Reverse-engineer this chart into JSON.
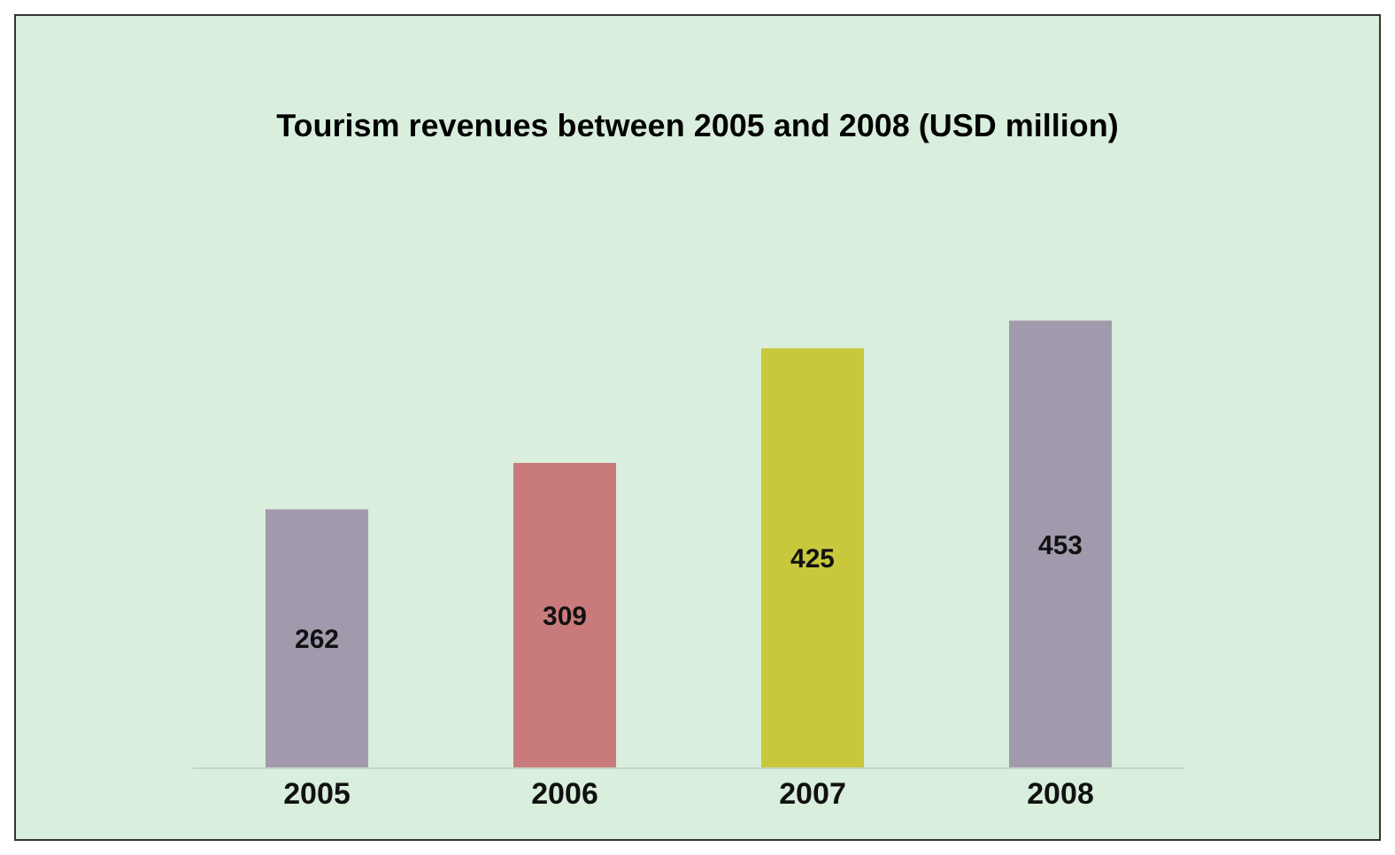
{
  "chart_data": {
    "type": "bar",
    "title": "Tourism revenues between 2005 and 2008 (USD million)",
    "categories": [
      "2005",
      "2006",
      "2007",
      "2008"
    ],
    "values": [
      262,
      309,
      425,
      453
    ],
    "colors": [
      "#a09aac",
      "#c97b7b",
      "#c9c83c",
      "#a09aac"
    ],
    "data_labels": true
  }
}
